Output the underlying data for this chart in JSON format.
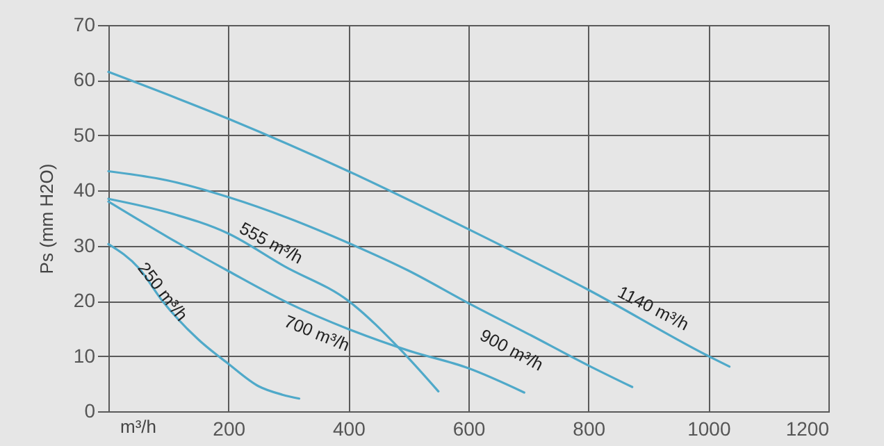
{
  "chart_data": {
    "type": "line",
    "ylabel": "Ps (mm H2O)",
    "xlabel": "m³/h",
    "xlim": [
      0,
      1200
    ],
    "xticks": [
      {
        "value": 0,
        "label": null
      },
      200,
      400,
      600,
      800,
      1000,
      1200
    ],
    "ylim": [
      0,
      70
    ],
    "yticks": [
      0,
      10,
      20,
      30,
      40,
      50,
      60,
      70
    ],
    "grid": true,
    "series": [
      {
        "name": "250 m³/h",
        "color": "#4fa9c9",
        "x": [
          0,
          51,
          90,
          150,
          200,
          251,
          290,
          318
        ],
        "values": [
          30.3,
          25.9,
          20,
          13,
          8.6,
          4.5,
          3,
          2.3
        ]
      },
      {
        "name": "555 m³/h",
        "color": "#4fa9c9",
        "x": [
          0,
          100,
          200,
          293,
          400,
          490,
          550
        ],
        "values": [
          38.5,
          36,
          32.2,
          26.3,
          20,
          10.8,
          3.6
        ]
      },
      {
        "name": "700 m³/h",
        "color": "#4fa9c9",
        "x": [
          0,
          100,
          200,
          300,
          400,
          500,
          600,
          693
        ],
        "values": [
          38,
          31.5,
          25.4,
          19.6,
          14.9,
          11,
          7.8,
          3.4
        ]
      },
      {
        "name": "900 m³/h",
        "color": "#4fa9c9",
        "x": [
          0,
          100,
          200,
          300,
          400,
          500,
          600,
          700,
          800,
          873
        ],
        "values": [
          43.5,
          41.8,
          38.8,
          35,
          30.5,
          25.5,
          19.6,
          14,
          8.3,
          4.4
        ]
      },
      {
        "name": "1140 m³/h",
        "color": "#4fa9c9",
        "x": [
          0,
          200,
          400,
          600,
          800,
          1000,
          1035
        ],
        "values": [
          61.5,
          53,
          43.5,
          33,
          22,
          10,
          8.1
        ]
      }
    ]
  }
}
